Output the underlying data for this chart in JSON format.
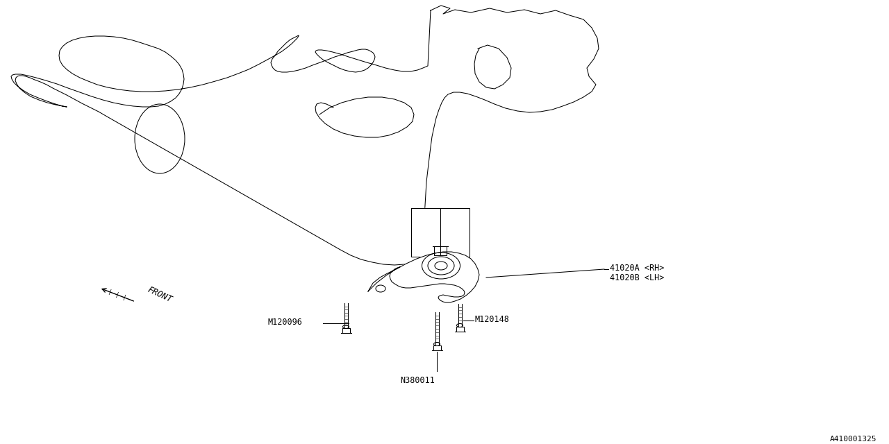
{
  "bg_color": "#ffffff",
  "line_color": "#000000",
  "label_fontsize": 8.5,
  "diagram_id": "A410001325",
  "label_41020A": "41020A <RH>",
  "label_41020B": "41020B <LH>",
  "label_M120096": "M120096",
  "label_M120148": "M120148",
  "label_N380011": "N380011",
  "label_FRONT": "FRONT",
  "engine_x": [
    620,
    635,
    648,
    638,
    655,
    678,
    705,
    730,
    755,
    778,
    800,
    820,
    840,
    852,
    860,
    862,
    855,
    845,
    848,
    858,
    852,
    840,
    826,
    810,
    795,
    778,
    762,
    745,
    728,
    712,
    698,
    685,
    673,
    662,
    653,
    645,
    640,
    636,
    632,
    628,
    625,
    622,
    620,
    618,
    616,
    614,
    613,
    612,
    611,
    612,
    613,
    615,
    617,
    612,
    605,
    595,
    582,
    568,
    552,
    536,
    520,
    505,
    490,
    476,
    462,
    448,
    434,
    420,
    406,
    392,
    378,
    364,
    350,
    336,
    322,
    308,
    294,
    280,
    266,
    252,
    238,
    224,
    210,
    196,
    182,
    168,
    154,
    142,
    130,
    118,
    107,
    96,
    86,
    76,
    67,
    58,
    50,
    43,
    37,
    32,
    28,
    25,
    23,
    22,
    24,
    28,
    35,
    44,
    56,
    68,
    80,
    90,
    96,
    90,
    80,
    68,
    55,
    43,
    33,
    25,
    20,
    17,
    16,
    18,
    22,
    30,
    40,
    52,
    66,
    82,
    98,
    115,
    132,
    148,
    163,
    178,
    192,
    205,
    217,
    228,
    238,
    246,
    253,
    258,
    262,
    264,
    265,
    264,
    262,
    258,
    253,
    246,
    238,
    228,
    216,
    204,
    191,
    178,
    164,
    150,
    137,
    125,
    114,
    104,
    96,
    90,
    86,
    85,
    86,
    90,
    96,
    104,
    115,
    127,
    140,
    155,
    171,
    187,
    204,
    220,
    238,
    256,
    274,
    292,
    310,
    327,
    343,
    358,
    372,
    385,
    396,
    406,
    414,
    420,
    425,
    428,
    430,
    430,
    428,
    424,
    418,
    412,
    406,
    400,
    396,
    392,
    390,
    391,
    393,
    396,
    400,
    406,
    413,
    421,
    430,
    440,
    450,
    461,
    472,
    482,
    492,
    500,
    508,
    515,
    521,
    526,
    530,
    534,
    537,
    539,
    540,
    539,
    537,
    534,
    530,
    525,
    519,
    512,
    504,
    496,
    488,
    480,
    472,
    465,
    460,
    456,
    454,
    455,
    458,
    463,
    470,
    479,
    490,
    502,
    515,
    528,
    542,
    555,
    568,
    580,
    591,
    601,
    609,
    616,
    620
  ],
  "engine_y": [
    15,
    8,
    12,
    20,
    14,
    18,
    12,
    18,
    14,
    20,
    15,
    22,
    28,
    40,
    55,
    70,
    85,
    98,
    110,
    122,
    132,
    140,
    147,
    153,
    158,
    161,
    162,
    160,
    156,
    150,
    144,
    139,
    135,
    133,
    133,
    136,
    141,
    148,
    158,
    170,
    183,
    197,
    212,
    228,
    245,
    262,
    279,
    296,
    313,
    328,
    340,
    352,
    360,
    368,
    374,
    378,
    381,
    382,
    381,
    378,
    374,
    368,
    360,
    352,
    344,
    336,
    328,
    320,
    312,
    304,
    296,
    288,
    280,
    272,
    264,
    256,
    248,
    240,
    232,
    224,
    216,
    208,
    200,
    192,
    184,
    176,
    168,
    161,
    155,
    149,
    143,
    137,
    132,
    127,
    122,
    118,
    115,
    112,
    110,
    109,
    109,
    110,
    112,
    116,
    121,
    127,
    133,
    139,
    144,
    148,
    151,
    153,
    154,
    153,
    150,
    146,
    141,
    136,
    130,
    124,
    119,
    114,
    110,
    108,
    107,
    107,
    109,
    112,
    116,
    121,
    127,
    133,
    139,
    144,
    148,
    151,
    153,
    154,
    154,
    153,
    150,
    146,
    141,
    135,
    128,
    121,
    114,
    107,
    100,
    93,
    87,
    81,
    75,
    70,
    66,
    62,
    58,
    55,
    53,
    52,
    52,
    53,
    55,
    58,
    62,
    67,
    73,
    80,
    87,
    94,
    100,
    106,
    112,
    117,
    122,
    126,
    129,
    131,
    132,
    132,
    131,
    129,
    126,
    122,
    117,
    112,
    106,
    100,
    93,
    86,
    80,
    74,
    68,
    63,
    58,
    55,
    52,
    51,
    52,
    54,
    57,
    62,
    68,
    74,
    80,
    85,
    90,
    94,
    98,
    101,
    103,
    104,
    104,
    103,
    101,
    98,
    94,
    90,
    86,
    82,
    79,
    76,
    74,
    72,
    71,
    71,
    72,
    74,
    76,
    79,
    82,
    86,
    90,
    94,
    98,
    101,
    103,
    104,
    103,
    101,
    98,
    94,
    90,
    86,
    82,
    78,
    75,
    73,
    72,
    72,
    73,
    75,
    78,
    82,
    86,
    90,
    94,
    98,
    101,
    103,
    103,
    101,
    98,
    95,
    15
  ]
}
